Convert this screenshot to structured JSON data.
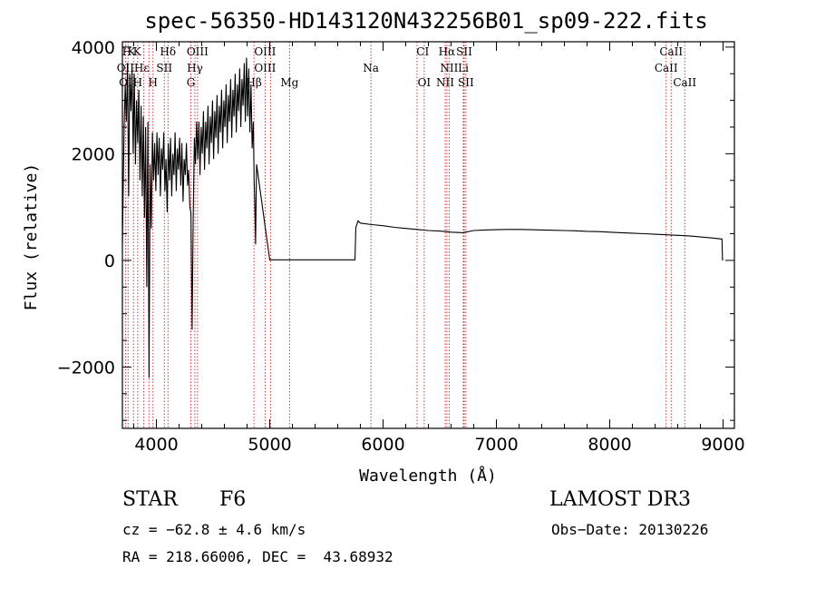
{
  "chart_data": {
    "type": "line",
    "title": "spec-56350-HD143120N432256B01_sp09-222.fits",
    "xlabel": "Wavelength (Å)",
    "ylabel": "Flux (relative)",
    "xlim": [
      3700,
      9100
    ],
    "ylim": [
      -3150,
      4100
    ],
    "x_ticks": [
      4000,
      5000,
      6000,
      7000,
      8000,
      9000
    ],
    "y_ticks": [
      -2000,
      0,
      2000,
      4000
    ],
    "x_tick_labels": [
      "4000",
      "5000",
      "6000",
      "7000",
      "8000",
      "9000"
    ],
    "y_tick_labels": [
      "−2000",
      "0",
      "2000",
      "4000"
    ],
    "series": [
      {
        "name": "spectrum",
        "x": [
          3700,
          3715,
          3725,
          3735,
          3745,
          3755,
          3765,
          3775,
          3785,
          3795,
          3805,
          3815,
          3825,
          3835,
          3845,
          3855,
          3865,
          3875,
          3885,
          3895,
          3905,
          3915,
          3925,
          3935,
          3945,
          3955,
          3965,
          3975,
          3985,
          3995,
          4005,
          4015,
          4025,
          4035,
          4045,
          4055,
          4065,
          4075,
          4085,
          4095,
          4105,
          4115,
          4125,
          4135,
          4145,
          4155,
          4165,
          4175,
          4185,
          4195,
          4205,
          4215,
          4225,
          4235,
          4245,
          4255,
          4265,
          4275,
          4285,
          4295,
          4305,
          4315,
          4325,
          4335,
          4345,
          4355,
          4365,
          4375,
          4385,
          4395,
          4405,
          4415,
          4425,
          4435,
          4445,
          4455,
          4465,
          4475,
          4485,
          4495,
          4505,
          4515,
          4525,
          4535,
          4545,
          4555,
          4565,
          4575,
          4585,
          4595,
          4605,
          4615,
          4625,
          4635,
          4645,
          4655,
          4665,
          4675,
          4685,
          4695,
          4705,
          4715,
          4725,
          4735,
          4745,
          4755,
          4765,
          4775,
          4785,
          4795,
          4805,
          4815,
          4825,
          4835,
          4845,
          4855,
          4862,
          4868,
          4875,
          4880,
          4884,
          4890,
          5000,
          5200,
          5400,
          5600,
          5750,
          5752,
          5760,
          5780,
          5800,
          5900,
          6000,
          6100,
          6200,
          6300,
          6400,
          6500,
          6560,
          6600,
          6700,
          6800,
          6900,
          7000,
          7100,
          7200,
          7300,
          7400,
          7500,
          7600,
          7700,
          7800,
          7900,
          8000,
          8100,
          8200,
          8300,
          8400,
          8500,
          8600,
          8700,
          8800,
          8900,
          8990,
          8995,
          9000
        ],
        "y": [
          300,
          2500,
          3300,
          2600,
          3700,
          1200,
          3500,
          2800,
          3600,
          2000,
          3500,
          1800,
          3000,
          2200,
          3200,
          1500,
          2900,
          1200,
          2700,
          800,
          2500,
          -500,
          2600,
          -2200,
          1800,
          600,
          2400,
          1500,
          2200,
          1300,
          2400,
          1600,
          2300,
          1200,
          2100,
          1700,
          2400,
          1300,
          1900,
          900,
          2200,
          1500,
          2300,
          1200,
          2000,
          1600,
          2400,
          1300,
          2100,
          1700,
          2300,
          1400,
          2200,
          1100,
          1900,
          1600,
          2200,
          1400,
          1700,
          1000,
          900,
          -1300,
          800,
          2300,
          1800,
          2600,
          1900,
          2600,
          1600,
          2500,
          2000,
          2800,
          1700,
          2600,
          2100,
          2900,
          1800,
          2700,
          2200,
          3000,
          1900,
          2800,
          2300,
          3100,
          2000,
          2900,
          2400,
          3200,
          2100,
          3000,
          2500,
          3300,
          2200,
          3100,
          2600,
          3400,
          2300,
          3200,
          2700,
          3500,
          2400,
          3300,
          2800,
          3600,
          2500,
          3400,
          2900,
          3700,
          2600,
          3800,
          2700,
          3600,
          2400,
          3300,
          2100,
          2600,
          1500,
          1100,
          300,
          1200,
          1800,
          1700,
          10,
          10,
          10,
          10,
          10,
          10,
          620,
          740,
          700,
          670,
          650,
          620,
          600,
          580,
          560,
          550,
          540,
          530,
          520,
          560,
          570,
          575,
          580,
          580,
          575,
          570,
          565,
          560,
          555,
          545,
          540,
          530,
          520,
          510,
          500,
          490,
          480,
          470,
          460,
          440,
          420,
          400,
          10,
          0
        ]
      }
    ],
    "line_labels": [
      {
        "text": "H",
        "x": 3740,
        "row": 1
      },
      {
        "text": "K",
        "x": 3780,
        "row": 1
      },
      {
        "text": "K",
        "x": 3830,
        "row": 1
      },
      {
        "text": "Hδ",
        "x": 4102,
        "row": 1
      },
      {
        "text": "OIII",
        "x": 4363,
        "row": 1
      },
      {
        "text": "OIII",
        "x": 4959,
        "row": 1
      },
      {
        "text": "CI",
        "x": 6350,
        "row": 1
      },
      {
        "text": "Hα",
        "x": 6563,
        "row": 1
      },
      {
        "text": "SII",
        "x": 6716,
        "row": 1
      },
      {
        "text": "CaII",
        "x": 8542,
        "row": 1
      },
      {
        "text": "OII",
        "x": 3727,
        "row": 2
      },
      {
        "text": "Hε",
        "x": 3870,
        "row": 2
      },
      {
        "text": "SII",
        "x": 4070,
        "row": 2
      },
      {
        "text": "Hγ",
        "x": 4340,
        "row": 2
      },
      {
        "text": "OIII",
        "x": 4959,
        "row": 2
      },
      {
        "text": "Na",
        "x": 5893,
        "row": 2
      },
      {
        "text": "NII",
        "x": 6583,
        "row": 2
      },
      {
        "text": "Li",
        "x": 6708,
        "row": 2
      },
      {
        "text": "CaII",
        "x": 8498,
        "row": 2
      },
      {
        "text": "OI",
        "x": 3727,
        "row": 3
      },
      {
        "text": "H",
        "x": 3835,
        "row": 3
      },
      {
        "text": "H",
        "x": 3970,
        "row": 3
      },
      {
        "text": "G",
        "x": 4304,
        "row": 3
      },
      {
        "text": "Hβ",
        "x": 4861,
        "row": 3
      },
      {
        "text": "Mg",
        "x": 5175,
        "row": 3
      },
      {
        "text": "OI",
        "x": 6363,
        "row": 3
      },
      {
        "text": "NII",
        "x": 6548,
        "row": 3
      },
      {
        "text": "SII",
        "x": 6731,
        "row": 3
      },
      {
        "text": "CaII",
        "x": 8662,
        "row": 3
      }
    ],
    "marker_lines": [
      3727,
      3750,
      3798,
      3835,
      3889,
      3934,
      3970,
      4070,
      4102,
      4304,
      4340,
      4363,
      4861,
      4959,
      5007,
      5175,
      5893,
      6300,
      6363,
      6548,
      6563,
      6583,
      6708,
      6716,
      6731,
      8498,
      8542,
      8662
    ],
    "colors": {
      "spectrum": "#000000",
      "marker": "#cc2222"
    }
  },
  "footer": {
    "object_class": "STAR",
    "subclass": "F6",
    "survey": "LAMOST DR3",
    "cz": "cz = −62.8 ± 4.6 km/s",
    "obs_date": "Obs−Date: 20130226",
    "coords": "RA = 218.66006, DEC =  43.68932"
  }
}
